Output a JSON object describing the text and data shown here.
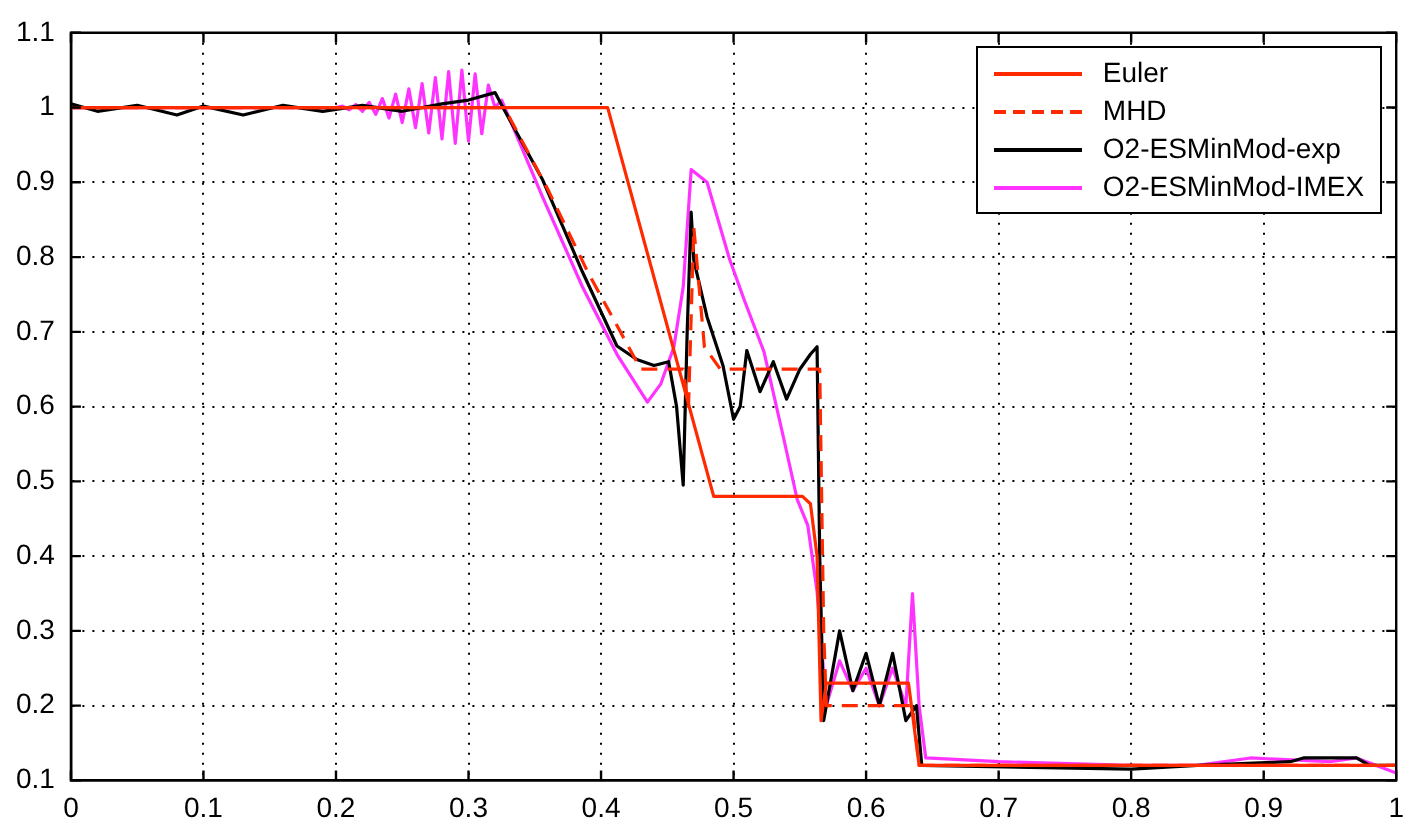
{
  "chart_data": {
    "type": "line",
    "xlim": [
      0,
      1
    ],
    "ylim": [
      0.1,
      1.1
    ],
    "xticks": [
      0,
      0.1,
      0.2,
      0.3,
      0.4,
      0.5,
      0.6,
      0.7,
      0.8,
      0.9,
      1
    ],
    "yticks": [
      0.1,
      0.2,
      0.3,
      0.4,
      0.5,
      0.6,
      0.7,
      0.8,
      0.9,
      1,
      1.1
    ],
    "grid": true,
    "legend": "top right",
    "marker": "none",
    "series": [
      {
        "name": "Euler",
        "color": "#ff2a00",
        "line_style": "solid",
        "x": [
          0,
          0.405,
          0.485,
          0.552,
          0.558,
          0.563,
          0.566,
          0.57,
          0.632,
          0.64,
          1
        ],
        "values": [
          1,
          1,
          0.48,
          0.48,
          0.47,
          0.4,
          0.18,
          0.23,
          0.23,
          0.12,
          0.12
        ]
      },
      {
        "name": "MHD",
        "color": "#ff2a00",
        "line_style": "dashed",
        "x": [
          0,
          0.325,
          0.33,
          0.36,
          0.39,
          0.43,
          0.462,
          0.466,
          0.47,
          0.478,
          0.49,
          0.565,
          0.568,
          0.57,
          0.635,
          0.64,
          1
        ],
        "values": [
          1,
          1,
          0.99,
          0.89,
          0.78,
          0.65,
          0.65,
          0.6,
          0.84,
          0.68,
          0.65,
          0.65,
          0.3,
          0.2,
          0.2,
          0.12,
          0.12
        ]
      },
      {
        "name": "O2-ESMinMod-exp",
        "color": "#000000",
        "line_style": "solid",
        "x": [
          0,
          0.02,
          0.05,
          0.08,
          0.1,
          0.13,
          0.16,
          0.19,
          0.22,
          0.25,
          0.28,
          0.3,
          0.32,
          0.326,
          0.356,
          0.386,
          0.412,
          0.427,
          0.44,
          0.451,
          0.457,
          0.462,
          0.465,
          0.468,
          0.47,
          0.48,
          0.492,
          0.5,
          0.505,
          0.51,
          0.52,
          0.53,
          0.54,
          0.55,
          0.558,
          0.563,
          0.565,
          0.568,
          0.575,
          0.58,
          0.59,
          0.6,
          0.61,
          0.62,
          0.63,
          0.638,
          0.642,
          0.8,
          0.85,
          0.92,
          0.93,
          0.97,
          0.98,
          1
        ],
        "values": [
          1.005,
          0.995,
          1.003,
          0.99,
          1.002,
          0.99,
          1.003,
          0.995,
          1.003,
          0.995,
          1.005,
          1.01,
          1.02,
          1,
          0.903,
          0.78,
          0.681,
          0.663,
          0.655,
          0.66,
          0.6,
          0.495,
          0.7,
          0.86,
          0.796,
          0.72,
          0.655,
          0.583,
          0.6,
          0.675,
          0.62,
          0.66,
          0.61,
          0.65,
          0.67,
          0.68,
          0.4,
          0.18,
          0.25,
          0.3,
          0.22,
          0.27,
          0.2,
          0.27,
          0.18,
          0.2,
          0.12,
          0.115,
          0.12,
          0.125,
          0.13,
          0.13,
          0.12,
          0.12
        ]
      },
      {
        "name": "O2-ESMinMod-IMEX",
        "color": "#ff33ff",
        "line_style": "solid",
        "x": [
          0,
          0.2,
          0.205,
          0.21,
          0.215,
          0.22,
          0.225,
          0.23,
          0.235,
          0.24,
          0.245,
          0.25,
          0.255,
          0.26,
          0.265,
          0.27,
          0.275,
          0.28,
          0.285,
          0.29,
          0.295,
          0.3,
          0.305,
          0.31,
          0.315,
          0.32,
          0.325,
          0.356,
          0.386,
          0.412,
          0.435,
          0.445,
          0.455,
          0.462,
          0.468,
          0.48,
          0.497,
          0.508,
          0.523,
          0.538,
          0.548,
          0.556,
          0.563,
          0.57,
          0.58,
          0.59,
          0.6,
          0.61,
          0.62,
          0.63,
          0.635,
          0.64,
          0.645,
          0.7,
          0.8,
          0.85,
          0.89,
          0.95,
          0.97,
          1
        ],
        "values": [
          1,
          1,
          1.002,
          0.997,
          1.004,
          0.995,
          1.007,
          0.991,
          1.012,
          0.986,
          1.018,
          0.98,
          1.025,
          0.973,
          1.032,
          0.966,
          1.04,
          0.958,
          1.048,
          0.952,
          1.05,
          0.955,
          1.045,
          0.965,
          1.03,
          1,
          1.01,
          0.88,
          0.76,
          0.67,
          0.606,
          0.63,
          0.68,
          0.76,
          0.917,
          0.9,
          0.797,
          0.743,
          0.673,
          0.556,
          0.476,
          0.441,
          0.353,
          0.2,
          0.26,
          0.22,
          0.25,
          0.2,
          0.25,
          0.2,
          0.35,
          0.2,
          0.13,
          0.125,
          0.12,
          0.12,
          0.13,
          0.125,
          0.13,
          0.11
        ]
      }
    ]
  }
}
